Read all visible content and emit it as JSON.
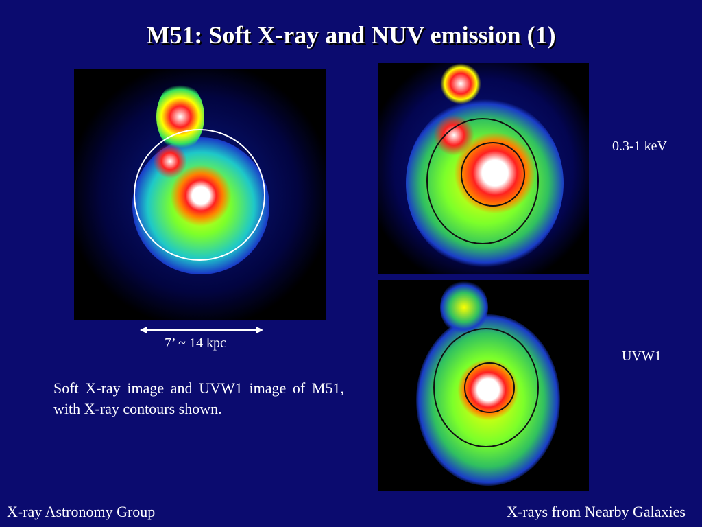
{
  "slide": {
    "title": "M51: Soft X-ray and NUV emission (1)",
    "scale_label": "7’ ~ 14 kpc",
    "caption": "Soft X-ray image and UVW1 image of M51, with X-ray contours shown.",
    "panel_labels": {
      "top_right": "0.3-1 keV",
      "bottom_right": "UVW1"
    },
    "footer_left": "X-ray Astronomy Group",
    "footer_right": "X-rays from Nearby Galaxies"
  },
  "colors": {
    "background": "#0b0b6f"
  }
}
